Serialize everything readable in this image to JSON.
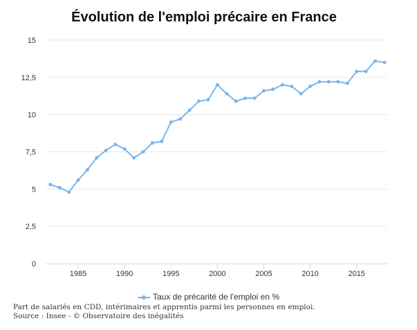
{
  "chart_data": {
    "type": "line",
    "title": "Évolution de l'emploi précaire en France",
    "xlabel": "",
    "ylabel": "",
    "xlim": [
      1981.5,
      2018.3
    ],
    "ylim": [
      0,
      15
    ],
    "yticks": [
      0,
      2.5,
      5,
      7.5,
      10,
      12.5,
      15
    ],
    "ytick_labels": [
      "0",
      "2,5",
      "5",
      "7,5",
      "10",
      "12,5",
      "15"
    ],
    "xticks": [
      1985,
      1990,
      1995,
      2000,
      2005,
      2010,
      2015
    ],
    "xtick_labels": [
      "1985",
      "1990",
      "1995",
      "2000",
      "2005",
      "2010",
      "2015"
    ],
    "grid": true,
    "legend_position": "bottom",
    "series": [
      {
        "name": "Taux de précarité de l'emploi en %",
        "color": "#7cb5ec",
        "x": [
          1982,
          1983,
          1984,
          1985,
          1986,
          1987,
          1988,
          1989,
          1990,
          1991,
          1992,
          1993,
          1994,
          1995,
          1996,
          1997,
          1998,
          1999,
          2000,
          2001,
          2002,
          2003,
          2004,
          2005,
          2006,
          2007,
          2008,
          2009,
          2010,
          2011,
          2012,
          2013,
          2014,
          2015,
          2016,
          2017,
          2018
        ],
        "values": [
          5.3,
          5.1,
          4.8,
          5.6,
          6.3,
          7.1,
          7.6,
          8.0,
          7.7,
          7.1,
          7.5,
          8.1,
          8.2,
          9.5,
          9.7,
          10.3,
          10.9,
          11.0,
          12.0,
          11.4,
          10.9,
          11.1,
          11.1,
          11.6,
          11.7,
          12.0,
          11.9,
          11.4,
          11.9,
          12.2,
          12.2,
          12.2,
          12.1,
          12.9,
          12.9,
          13.6,
          13.5
        ]
      }
    ]
  },
  "caption": {
    "line1": "Part de salariés en CDD, intérimaires et apprentis parmi les personnes en emploi.",
    "line2": "Source : Insee - © Observatoire des inégalités"
  }
}
